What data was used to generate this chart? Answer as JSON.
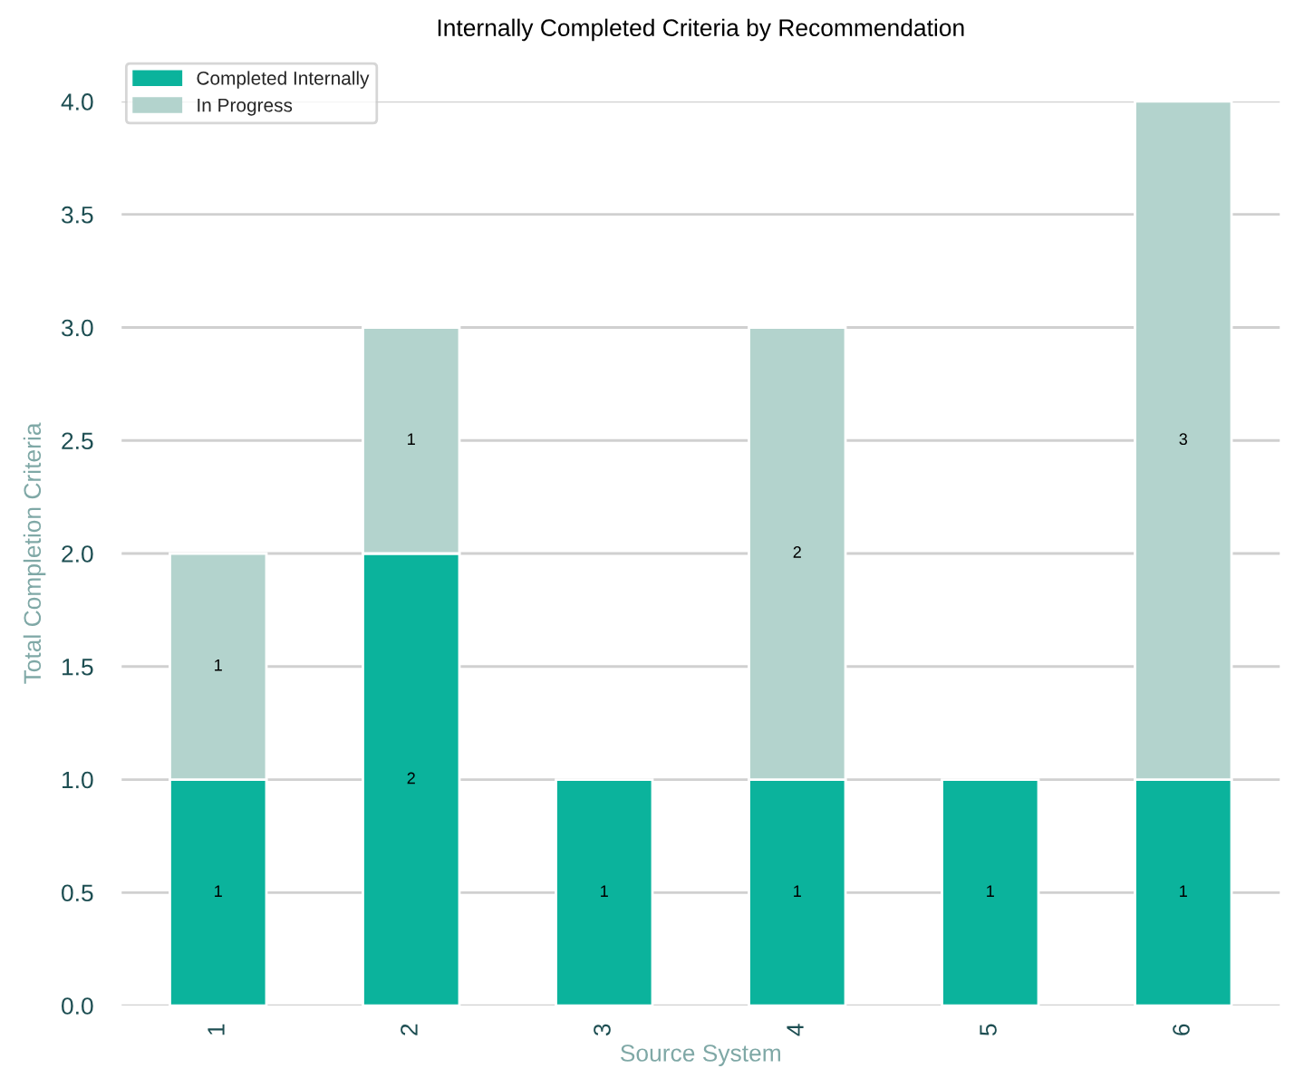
{
  "chart_data": {
    "type": "bar",
    "title": "Internally Completed Criteria by Recommendation",
    "xlabel": "Source System",
    "ylabel": "Total Completion Criteria",
    "categories": [
      "1",
      "2",
      "3",
      "4",
      "5",
      "6"
    ],
    "stacked": true,
    "series": [
      {
        "name": "Completed Internally",
        "color": "#0bb39c",
        "values": [
          1,
          2,
          1,
          1,
          1,
          1
        ]
      },
      {
        "name": "In Progress",
        "color": "#b3d3cd",
        "values": [
          1,
          1,
          null,
          2,
          null,
          3
        ]
      }
    ],
    "ylim": [
      0,
      4
    ],
    "yticks": [
      {
        "value": 0,
        "label": "0.0"
      },
      0.5,
      {
        "value": 1,
        "label": "1.0"
      },
      1.5,
      {
        "value": 2,
        "label": "2.0"
      },
      2.5,
      {
        "value": 3,
        "label": "3.0"
      },
      3.5,
      {
        "value": 4,
        "label": "4.0"
      }
    ],
    "data_labels": true,
    "grid": "y",
    "legend": "top left"
  }
}
